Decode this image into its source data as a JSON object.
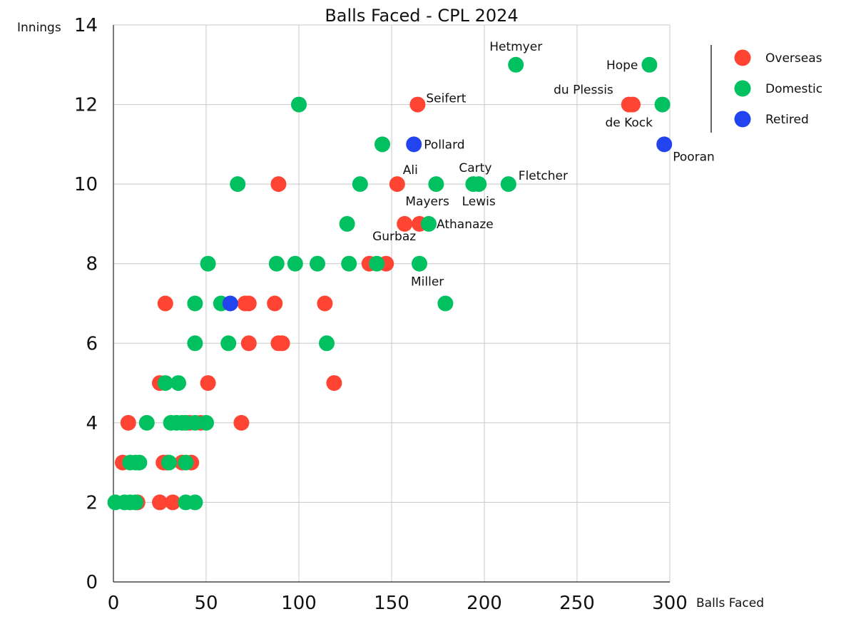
{
  "chart_data": {
    "type": "scatter",
    "title": "Balls Faced - CPL 2024",
    "xlabel": "Balls Faced",
    "ylabel": "Innings",
    "xlim": [
      0,
      300
    ],
    "ylim": [
      0,
      14
    ],
    "xticks": [
      0,
      50,
      100,
      150,
      200,
      250,
      300
    ],
    "yticks": [
      0,
      2,
      4,
      6,
      8,
      10,
      12,
      14
    ],
    "grid": true,
    "legend_position": "top-right",
    "legend": [
      {
        "name": "Overseas",
        "color": "#ff4433"
      },
      {
        "name": "Domestic",
        "color": "#00c060"
      },
      {
        "name": "Retired",
        "color": "#2244ee"
      }
    ],
    "series": [
      {
        "name": "Overseas",
        "color": "#ff4433",
        "points": [
          {
            "x": 164,
            "y": 12,
            "label": "Seifert"
          },
          {
            "x": 278,
            "y": 12,
            "label": "du Plessis"
          },
          {
            "x": 280,
            "y": 12,
            "label": "de Kock"
          },
          {
            "x": 153,
            "y": 10,
            "label": "Ali"
          },
          {
            "x": 157,
            "y": 9,
            "label": "Gurbaz"
          },
          {
            "x": 165,
            "y": 9
          },
          {
            "x": 89,
            "y": 10
          },
          {
            "x": 138,
            "y": 8
          },
          {
            "x": 147,
            "y": 8
          },
          {
            "x": 28,
            "y": 7
          },
          {
            "x": 71,
            "y": 7
          },
          {
            "x": 73,
            "y": 7
          },
          {
            "x": 87,
            "y": 7
          },
          {
            "x": 114,
            "y": 7
          },
          {
            "x": 73,
            "y": 6
          },
          {
            "x": 89,
            "y": 6
          },
          {
            "x": 91,
            "y": 6
          },
          {
            "x": 25,
            "y": 5
          },
          {
            "x": 51,
            "y": 5
          },
          {
            "x": 119,
            "y": 5
          },
          {
            "x": 8,
            "y": 4
          },
          {
            "x": 41,
            "y": 4
          },
          {
            "x": 47,
            "y": 4
          },
          {
            "x": 69,
            "y": 4
          },
          {
            "x": 5,
            "y": 3
          },
          {
            "x": 27,
            "y": 3
          },
          {
            "x": 29,
            "y": 3
          },
          {
            "x": 37,
            "y": 3
          },
          {
            "x": 42,
            "y": 3
          },
          {
            "x": 13,
            "y": 2
          },
          {
            "x": 25,
            "y": 2
          },
          {
            "x": 32,
            "y": 2
          }
        ]
      },
      {
        "name": "Domestic",
        "color": "#00c060",
        "points": [
          {
            "x": 217,
            "y": 13,
            "label": "Hetmyer"
          },
          {
            "x": 289,
            "y": 13,
            "label": "Hope"
          },
          {
            "x": 296,
            "y": 12
          },
          {
            "x": 100,
            "y": 12
          },
          {
            "x": 145,
            "y": 11
          },
          {
            "x": 174,
            "y": 10,
            "label": "Mayers"
          },
          {
            "x": 194,
            "y": 10,
            "label": "Carty"
          },
          {
            "x": 197,
            "y": 10,
            "label": "Lewis"
          },
          {
            "x": 213,
            "y": 10,
            "label": "Fletcher"
          },
          {
            "x": 67,
            "y": 10
          },
          {
            "x": 133,
            "y": 10
          },
          {
            "x": 126,
            "y": 9
          },
          {
            "x": 170,
            "y": 9,
            "label": "Athanaze"
          },
          {
            "x": 51,
            "y": 8
          },
          {
            "x": 88,
            "y": 8
          },
          {
            "x": 98,
            "y": 8
          },
          {
            "x": 110,
            "y": 8
          },
          {
            "x": 127,
            "y": 8
          },
          {
            "x": 142,
            "y": 8
          },
          {
            "x": 165,
            "y": 8,
            "label": "Miller"
          },
          {
            "x": 44,
            "y": 7
          },
          {
            "x": 58,
            "y": 7
          },
          {
            "x": 179,
            "y": 7
          },
          {
            "x": 44,
            "y": 6
          },
          {
            "x": 62,
            "y": 6
          },
          {
            "x": 115,
            "y": 6
          },
          {
            "x": 28,
            "y": 5
          },
          {
            "x": 35,
            "y": 5
          },
          {
            "x": 18,
            "y": 4
          },
          {
            "x": 31,
            "y": 4
          },
          {
            "x": 34,
            "y": 4
          },
          {
            "x": 37,
            "y": 4
          },
          {
            "x": 39,
            "y": 4
          },
          {
            "x": 44,
            "y": 4
          },
          {
            "x": 50,
            "y": 4
          },
          {
            "x": 9,
            "y": 3
          },
          {
            "x": 12,
            "y": 3
          },
          {
            "x": 14,
            "y": 3
          },
          {
            "x": 30,
            "y": 3
          },
          {
            "x": 39,
            "y": 3
          },
          {
            "x": 1,
            "y": 2
          },
          {
            "x": 6,
            "y": 2
          },
          {
            "x": 9,
            "y": 2
          },
          {
            "x": 12,
            "y": 2
          },
          {
            "x": 39,
            "y": 2
          },
          {
            "x": 44,
            "y": 2
          }
        ]
      },
      {
        "name": "Retired",
        "color": "#2244ee",
        "points": [
          {
            "x": 162,
            "y": 11,
            "label": "Pollard"
          },
          {
            "x": 297,
            "y": 11,
            "label": "Pooran"
          },
          {
            "x": 63,
            "y": 7
          }
        ]
      }
    ]
  }
}
